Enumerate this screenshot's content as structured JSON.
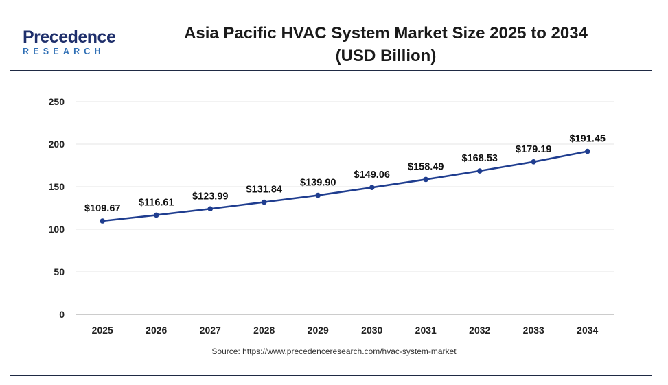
{
  "header": {
    "logo_top": "Precedence",
    "logo_bottom": "RESEARCH",
    "title_line1": "Asia Pacific HVAC System Market Size 2025 to 2034",
    "title_line2": "(USD Billion)"
  },
  "source": "Source: https://www.precedenceresearch.com/hvac-system-market",
  "colors": {
    "line": "#1f3d8f",
    "frame": "#1f2a44",
    "grid": "#e6e6e6"
  },
  "chart_data": {
    "type": "line",
    "title": "Asia Pacific HVAC System Market Size 2025 to 2034 (USD Billion)",
    "xlabel": "",
    "ylabel": "",
    "categories": [
      "2025",
      "2026",
      "2027",
      "2028",
      "2029",
      "2030",
      "2031",
      "2032",
      "2033",
      "2034"
    ],
    "values": [
      109.67,
      116.61,
      123.99,
      131.84,
      139.9,
      149.06,
      158.49,
      168.53,
      179.19,
      191.45
    ],
    "data_labels": [
      "$109.67",
      "$116.61",
      "$123.99",
      "$131.84",
      "$139.90",
      "$149.06",
      "$158.49",
      "$168.53",
      "$179.19",
      "$191.45"
    ],
    "yticks": [
      "0",
      "50",
      "100",
      "150",
      "200",
      "250"
    ],
    "ylim": [
      0,
      250
    ],
    "grid": true,
    "legend": "none"
  }
}
